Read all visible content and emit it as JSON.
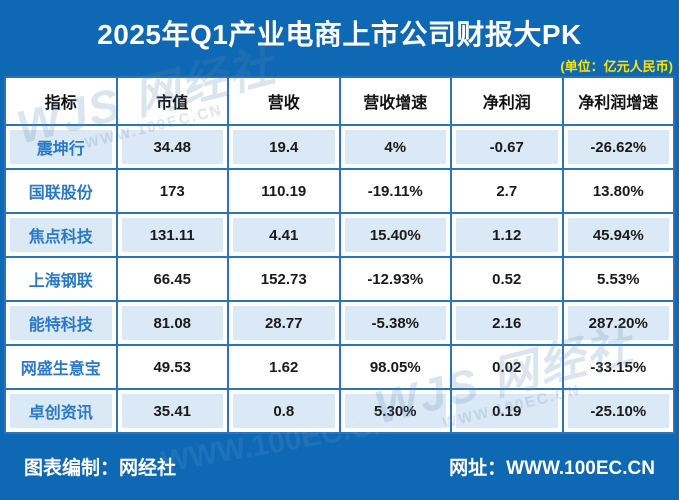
{
  "title": "2025年Q1产业电商上市公司财报大PK",
  "unit_note": "(单位：亿元人民币)",
  "chart_data": {
    "type": "table",
    "title": "2025年Q1产业电商上市公司财报大PK",
    "unit": "亿元人民币",
    "headers": [
      "指标",
      "市值",
      "营收",
      "营收增速",
      "净利润",
      "净利润增速"
    ],
    "rows": [
      {
        "name": "震坤行",
        "values": [
          "34.48",
          "19.4",
          "4%",
          "-0.67",
          "-26.62%"
        ]
      },
      {
        "name": "国联股份",
        "values": [
          "173",
          "110.19",
          "-19.11%",
          "2.7",
          "13.80%"
        ]
      },
      {
        "name": "焦点科技",
        "values": [
          "131.11",
          "4.41",
          "15.40%",
          "1.12",
          "45.94%"
        ]
      },
      {
        "name": "上海钢联",
        "values": [
          "66.45",
          "152.73",
          "-12.93%",
          "0.52",
          "5.53%"
        ]
      },
      {
        "name": "能特科技",
        "values": [
          "81.08",
          "28.77",
          "-5.38%",
          "2.16",
          "287.20%"
        ]
      },
      {
        "name": "网盛生意宝",
        "values": [
          "49.53",
          "1.62",
          "98.05%",
          "0.02",
          "-33.15%"
        ]
      },
      {
        "name": "卓创资讯",
        "values": [
          "35.41",
          "0.8",
          "5.30%",
          "0.19",
          "-25.10%"
        ]
      }
    ]
  },
  "footer": {
    "credit": "图表编制：网经社",
    "url": "网址：WWW.100EC.CN"
  },
  "watermark": {
    "logo": "WJS 网经社",
    "url": "WWW.100EC.CN"
  },
  "colors": {
    "background_blue": "#0e68b4",
    "table_border_blue": "#2e74b5",
    "row_highlight_blue": "#dbe9f6",
    "company_name_blue": "#2979c8",
    "unit_note_yellow": "#ffe400",
    "title_white": "#ffffff"
  }
}
